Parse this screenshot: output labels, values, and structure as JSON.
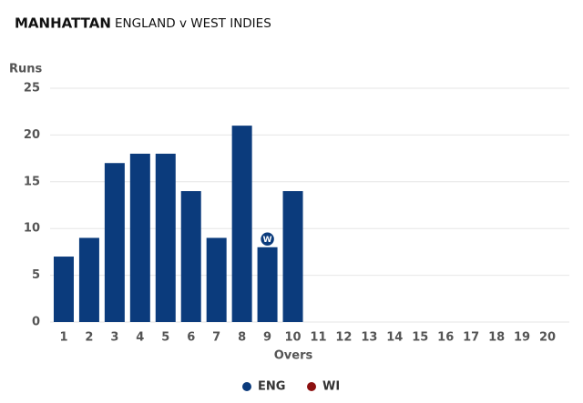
{
  "chart_data": {
    "type": "bar",
    "title": "MANHATTAN",
    "subtitle": "ENGLAND v WEST INDIES",
    "y_label": "Runs",
    "x_label": "Overs",
    "categories": [
      1,
      2,
      3,
      4,
      5,
      6,
      7,
      8,
      9,
      10,
      11,
      12,
      13,
      14,
      15,
      16,
      17,
      18,
      19,
      20
    ],
    "series": [
      {
        "name": "ENG",
        "color": "#0b3b7c",
        "values": [
          7,
          9,
          17,
          18,
          18,
          14,
          9,
          21,
          8,
          14,
          null,
          null,
          null,
          null,
          null,
          null,
          null,
          null,
          null,
          null
        ]
      },
      {
        "name": "WI",
        "color": "#8c1010",
        "values": [
          null,
          null,
          null,
          null,
          null,
          null,
          null,
          null,
          null,
          null,
          null,
          null,
          null,
          null,
          null,
          null,
          null,
          null,
          null,
          null
        ]
      }
    ],
    "wickets": [
      {
        "over": 9,
        "label": "W"
      }
    ],
    "ylim": [
      0,
      25
    ],
    "yticks": [
      0,
      5,
      10,
      15,
      20,
      25
    ],
    "grid": true,
    "legend": "bottom"
  }
}
